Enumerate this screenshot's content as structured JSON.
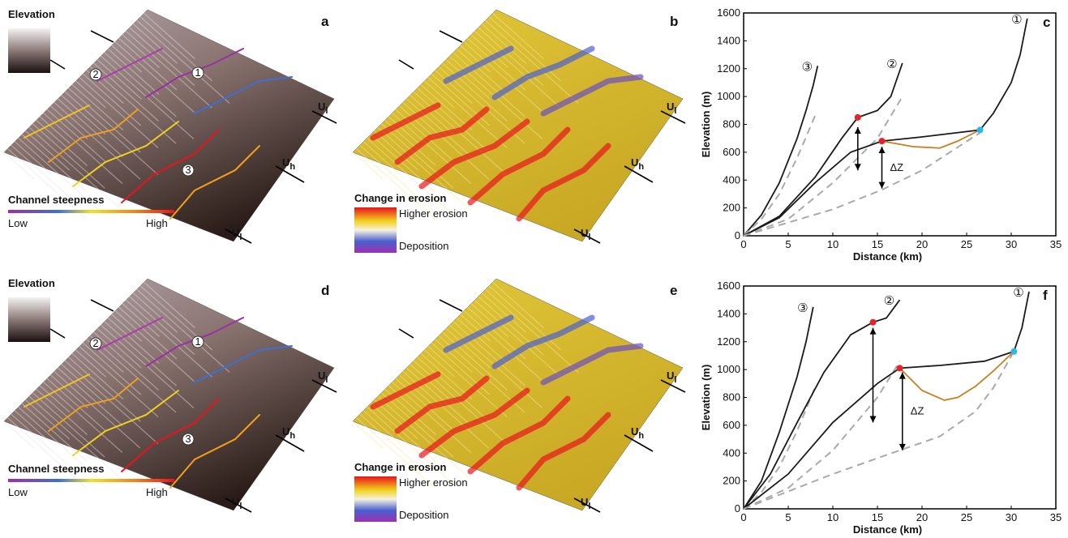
{
  "panels": [
    {
      "letter": "a",
      "legend_title": "Elevation",
      "scale_title": "Channel steepness",
      "scale_low": "Low",
      "scale_high": "High",
      "sites": [
        "1",
        "2",
        "3"
      ],
      "faults": [
        {
          "main": "U",
          "sub": "l"
        },
        {
          "main": "U",
          "sub": "h"
        },
        {
          "main": "U",
          "sub": "l"
        }
      ]
    },
    {
      "letter": "b",
      "legend_title": "Change in erosion",
      "legend_high": "Higher erosion",
      "legend_low": "Deposition",
      "faults": [
        {
          "main": "U",
          "sub": "l"
        },
        {
          "main": "U",
          "sub": "h"
        },
        {
          "main": "U",
          "sub": "l"
        }
      ]
    },
    {
      "letter": "d",
      "legend_title": "Elevation",
      "scale_title": "Channel steepness",
      "scale_low": "Low",
      "scale_high": "High",
      "sites": [
        "1",
        "2",
        "3"
      ],
      "faults": [
        {
          "main": "U",
          "sub": "l"
        },
        {
          "main": "U",
          "sub": "h"
        },
        {
          "main": "U",
          "sub": "l"
        }
      ]
    },
    {
      "letter": "e",
      "legend_title": "Change in erosion",
      "legend_high": "Higher erosion",
      "legend_low": "Deposition",
      "faults": [
        {
          "main": "U",
          "sub": "l"
        },
        {
          "main": "U",
          "sub": "h"
        },
        {
          "main": "U",
          "sub": "l"
        }
      ]
    }
  ],
  "chart_data": [
    {
      "type": "line",
      "letter": "c",
      "x_label": "Distance (km)",
      "y_label": "Elevation (m)",
      "xlim": [
        0,
        35
      ],
      "xticks": [
        0,
        5,
        10,
        15,
        20,
        25,
        30,
        35
      ],
      "ylim": [
        0,
        1600
      ],
      "yticks": [
        0,
        200,
        400,
        600,
        800,
        1000,
        1200,
        1400,
        1600
      ],
      "series": [
        {
          "name": "③",
          "color": "#1a1a1a",
          "x": [
            0,
            2,
            4,
            6,
            7,
            7.8,
            8.3
          ],
          "values": [
            0,
            150,
            380,
            700,
            900,
            1080,
            1220
          ]
        },
        {
          "color": "#aaaaaa",
          "dashed": true,
          "x": [
            0,
            2,
            4,
            6,
            8
          ],
          "values": [
            0,
            120,
            300,
            560,
            860
          ]
        },
        {
          "name": "②",
          "color": "#1a1a1a",
          "x": [
            0,
            4,
            8,
            11,
            12.8,
            15,
            16.5,
            17.8
          ],
          "values": [
            0,
            140,
            420,
            700,
            850,
            900,
            1000,
            1240
          ]
        },
        {
          "color": "#aaaaaa",
          "dashed": true,
          "x": [
            0,
            5,
            10,
            15,
            17.8
          ],
          "values": [
            0,
            120,
            380,
            700,
            1000
          ]
        },
        {
          "name": "①",
          "color": "#1a1a1a",
          "x": [
            0,
            4,
            8,
            12,
            15.5,
            20,
            26.5,
            28,
            30,
            31,
            31.8
          ],
          "values": [
            0,
            130,
            380,
            600,
            680,
            710,
            760,
            880,
            1100,
            1300,
            1560
          ]
        },
        {
          "color": "#aaaaaa",
          "dashed": true,
          "x": [
            0,
            10,
            15.5,
            20,
            26.5
          ],
          "values": [
            0,
            190,
            330,
            470,
            740
          ]
        },
        {
          "color": "#c8801e",
          "x": [
            15.5,
            19,
            22,
            24,
            26.5
          ],
          "values": [
            680,
            640,
            630,
            680,
            760
          ]
        }
      ],
      "markers": [
        {
          "x": 12.8,
          "y": 850,
          "color": "#e8202a"
        },
        {
          "x": 15.5,
          "y": 680,
          "color": "#e8202a"
        },
        {
          "x": 26.5,
          "y": 760,
          "color": "#2ab8e8"
        }
      ],
      "arrows": [
        {
          "x": 12.8,
          "y": [
            470,
            780
          ]
        },
        {
          "x": 15.5,
          "y": [
            340,
            640
          ]
        }
      ],
      "annotation": "ΔZ"
    },
    {
      "type": "line",
      "letter": "f",
      "x_label": "Distance (km)",
      "y_label": "Elevation (m)",
      "xlim": [
        0,
        35
      ],
      "xticks": [
        0,
        5,
        10,
        15,
        20,
        25,
        30,
        35
      ],
      "ylim": [
        0,
        1600
      ],
      "yticks": [
        0,
        200,
        400,
        600,
        800,
        1000,
        1200,
        1400,
        1600
      ],
      "series": [
        {
          "name": "③",
          "color": "#1a1a1a",
          "x": [
            0,
            2,
            4,
            6,
            7,
            7.8
          ],
          "values": [
            0,
            200,
            550,
            950,
            1200,
            1450
          ]
        },
        {
          "color": "#aaaaaa",
          "dashed": true,
          "x": [
            0,
            2,
            4,
            6,
            8
          ],
          "values": [
            0,
            120,
            300,
            560,
            870
          ]
        },
        {
          "name": "②",
          "color": "#1a1a1a",
          "x": [
            0,
            3,
            6,
            9,
            12,
            14.5,
            16,
            17.5
          ],
          "values": [
            0,
            250,
            620,
            980,
            1250,
            1340,
            1370,
            1500
          ]
        },
        {
          "color": "#aaaaaa",
          "dashed": true,
          "x": [
            0,
            5,
            10,
            15,
            17.5
          ],
          "values": [
            0,
            150,
            420,
            800,
            1060
          ]
        },
        {
          "name": "①",
          "color": "#1a1a1a",
          "x": [
            0,
            5,
            10,
            15,
            17.5,
            22,
            27,
            30.3,
            31.2,
            32
          ],
          "values": [
            0,
            250,
            620,
            900,
            1010,
            1030,
            1060,
            1130,
            1300,
            1560
          ]
        },
        {
          "color": "#aaaaaa",
          "dashed": true,
          "x": [
            0,
            10,
            17.5,
            22,
            26,
            28,
            30.3
          ],
          "values": [
            0,
            250,
            420,
            520,
            700,
            870,
            1130
          ]
        },
        {
          "color": "#c8801e",
          "x": [
            17.5,
            20,
            22.5,
            24,
            26,
            28,
            30.3
          ],
          "values": [
            1010,
            850,
            780,
            800,
            880,
            990,
            1130
          ]
        }
      ],
      "markers": [
        {
          "x": 14.5,
          "y": 1340,
          "color": "#e8202a"
        },
        {
          "x": 17.5,
          "y": 1010,
          "color": "#e8202a"
        },
        {
          "x": 30.3,
          "y": 1130,
          "color": "#2ab8e8"
        }
      ],
      "arrows": [
        {
          "x": 14.5,
          "y": [
            620,
            1300
          ]
        },
        {
          "x": 17.8,
          "y": [
            420,
            980
          ]
        }
      ],
      "annotation": "ΔZ"
    }
  ]
}
